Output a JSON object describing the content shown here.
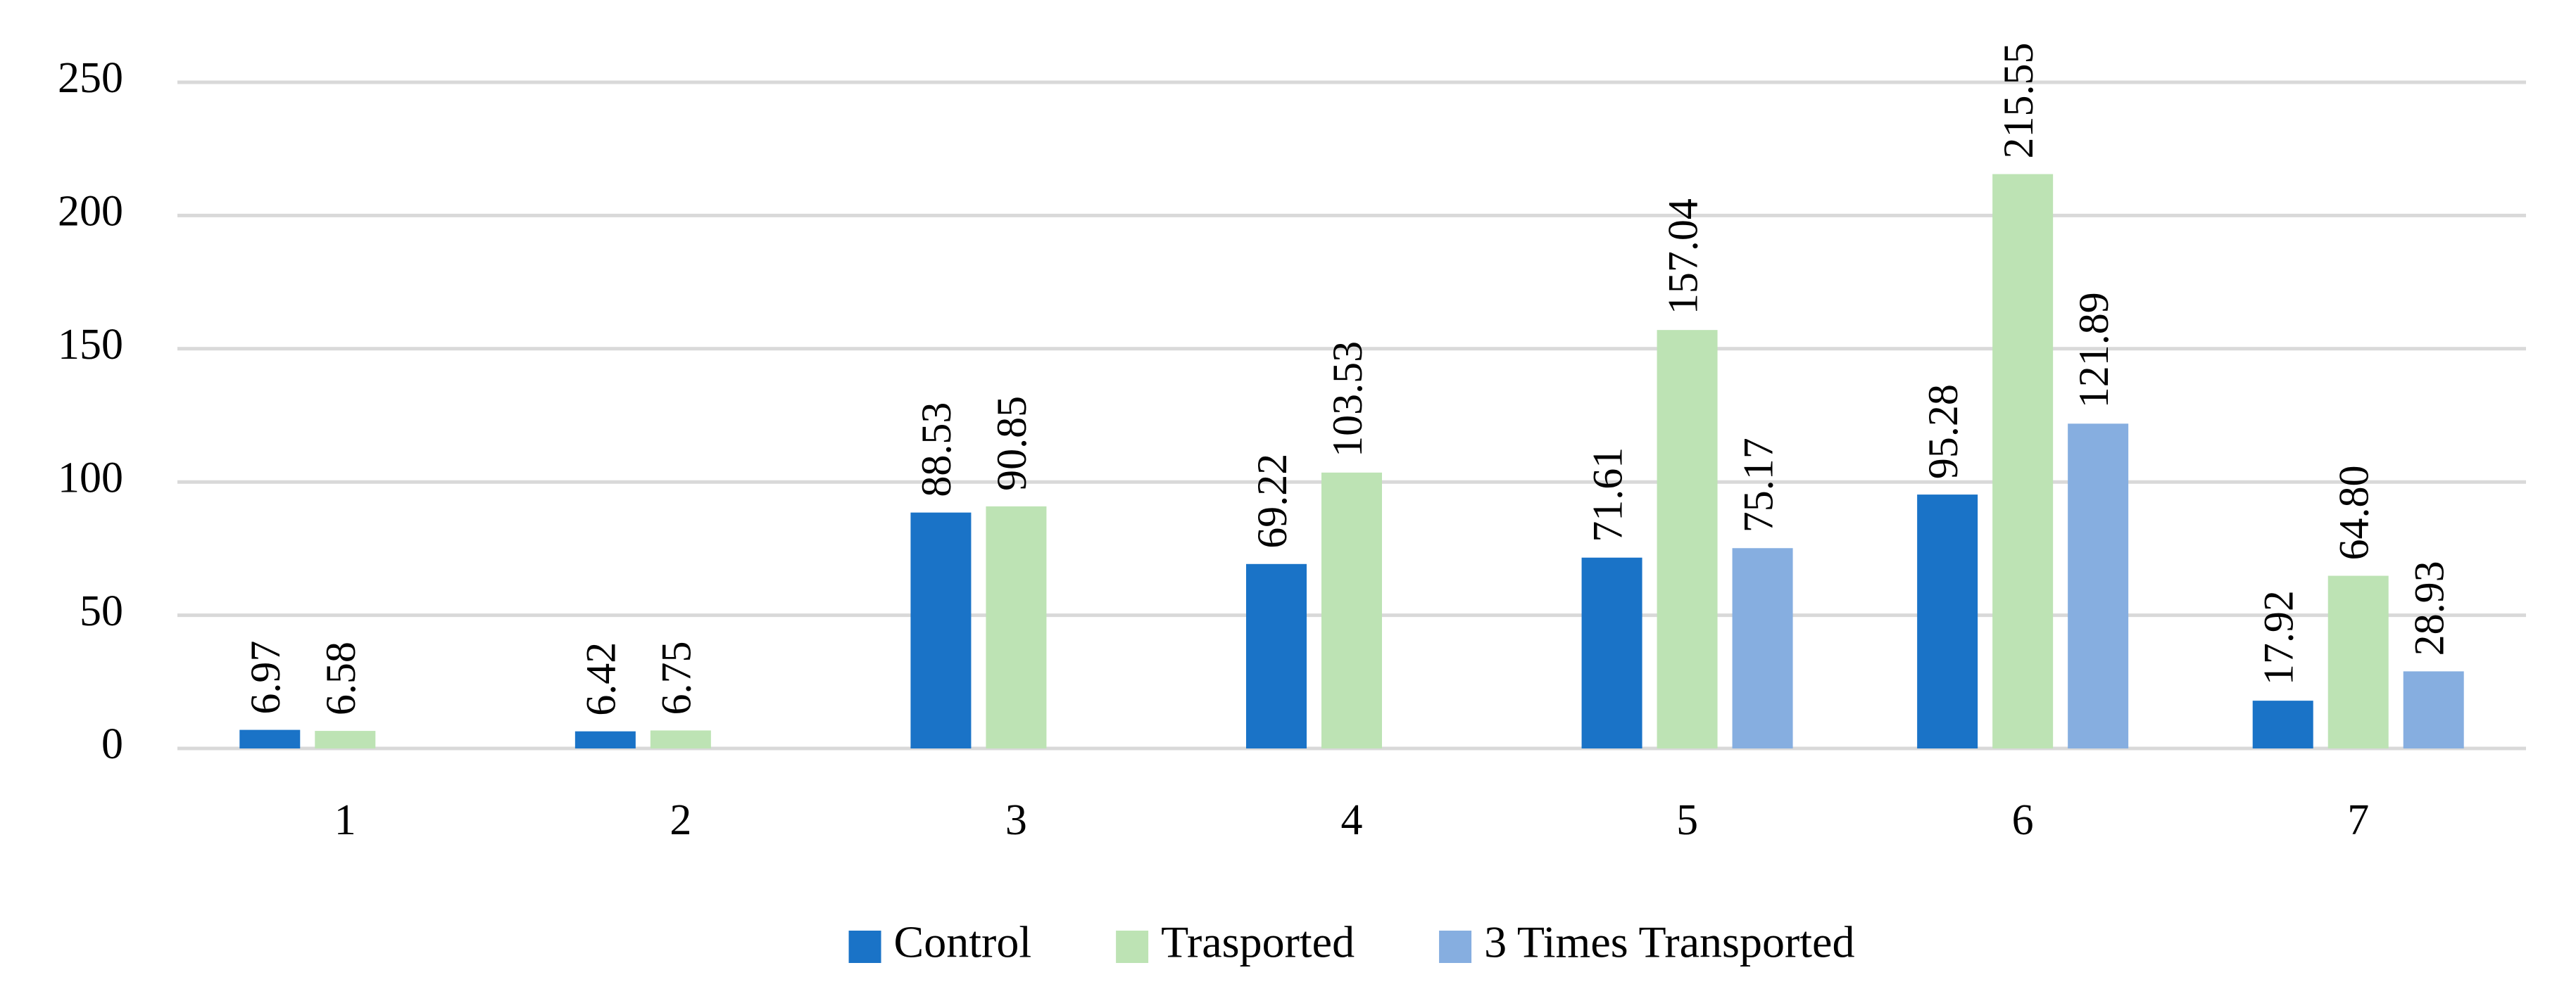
{
  "chart_data": {
    "type": "bar",
    "categories": [
      "1",
      "2",
      "3",
      "4",
      "5",
      "6",
      "7"
    ],
    "series": [
      {
        "name": "Control",
        "color": "#1a73c7",
        "values": [
          6.97,
          6.42,
          88.53,
          69.22,
          71.61,
          95.28,
          17.92
        ]
      },
      {
        "name": "Trasported",
        "color": "#bde3b4",
        "values": [
          6.58,
          6.75,
          90.85,
          103.53,
          157.04,
          215.55,
          64.8
        ],
        "value_labels": [
          "6.58",
          "6.75",
          "90.85",
          "103.53",
          "157.04",
          "215.55",
          "64.80"
        ]
      },
      {
        "name": "3 Times Transported",
        "color": "#86aee0",
        "values": [
          null,
          null,
          null,
          null,
          75.17,
          121.89,
          28.93
        ]
      }
    ],
    "ylim": [
      0,
      250
    ],
    "yticks": [
      0,
      50,
      100,
      150,
      200,
      250
    ],
    "grid": true,
    "legend": "bottom"
  }
}
